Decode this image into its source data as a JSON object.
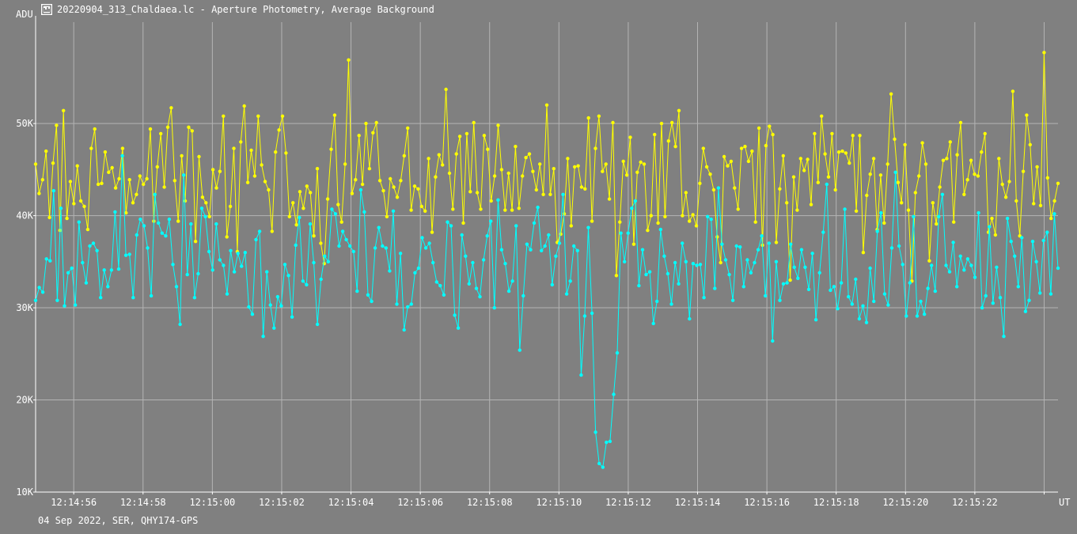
{
  "window": {
    "title": "20220904_313_Chaldaea.lc - Aperture Photometry, Average Background",
    "footer": "04 Sep 2022, SER, QHY174-GPS"
  },
  "colors": {
    "background": "#808080",
    "grid": "#b4b4b4",
    "axis": "#ffffff",
    "yellow_series": "#ffff00",
    "cyan_series": "#00ffff"
  },
  "chart_data": {
    "type": "line",
    "title": "",
    "xlabel": "UT",
    "ylabel": "ADU",
    "xlim": [
      0,
      29.5
    ],
    "ylim": [
      10000,
      61000
    ],
    "grid": true,
    "x_ticks": [
      {
        "value": 1.1,
        "label": "12:14:56"
      },
      {
        "value": 3.1,
        "label": "12:14:58"
      },
      {
        "value": 5.1,
        "label": "12:15:00"
      },
      {
        "value": 7.1,
        "label": "12:15:02"
      },
      {
        "value": 9.1,
        "label": "12:15:04"
      },
      {
        "value": 11.1,
        "label": "12:15:06"
      },
      {
        "value": 13.1,
        "label": "12:15:08"
      },
      {
        "value": 15.1,
        "label": "12:15:10"
      },
      {
        "value": 17.1,
        "label": "12:15:12"
      },
      {
        "value": 19.1,
        "label": "12:15:14"
      },
      {
        "value": 21.1,
        "label": "12:15:16"
      },
      {
        "value": 23.1,
        "label": "12:15:18"
      },
      {
        "value": 25.1,
        "label": "12:15:20"
      },
      {
        "value": 27.1,
        "label": "12:15:22"
      },
      {
        "value": 29.1,
        "label": ""
      }
    ],
    "y_ticks": [
      {
        "value": 10000,
        "label": "10K"
      },
      {
        "value": 20000,
        "label": "20K"
      },
      {
        "value": 30000,
        "label": "30K"
      },
      {
        "value": 40000,
        "label": "40K"
      },
      {
        "value": 50000,
        "label": "50K"
      }
    ],
    "series": [
      {
        "color": "#ffff00",
        "values": [
          45600,
          42400,
          43900,
          47000,
          39800,
          45700,
          49800,
          38400,
          51400,
          39700,
          43700,
          41300,
          45400,
          41600,
          41000,
          38500,
          47300,
          49400,
          43400,
          43500,
          46900,
          44700,
          45200,
          43000,
          44000,
          47300,
          40300,
          43900,
          41400,
          42300,
          44300,
          43400,
          44000,
          49400,
          39400,
          45300,
          48900,
          43100,
          49600,
          51700,
          43800,
          39400,
          46500,
          41600,
          49600,
          49200,
          37200,
          46400,
          42000,
          41400,
          39900,
          45000,
          43000,
          44800,
          50800,
          37700,
          41000,
          47300,
          36100,
          48000,
          51900,
          43600,
          47100,
          44300,
          50800,
          45500,
          43700,
          42800,
          38300,
          46900,
          49300,
          50800,
          46800,
          39900,
          41400,
          39000,
          42600,
          40800,
          43200,
          42500,
          37800,
          45100,
          37000,
          34800,
          41800,
          47200,
          50900,
          41200,
          39300,
          45600,
          56900,
          42400,
          43900,
          48700,
          43400,
          50000,
          45100,
          49000,
          50100,
          43800,
          42700,
          39900,
          44000,
          43100,
          42000,
          43800,
          46500,
          49500,
          40600,
          43200,
          42900,
          41000,
          40500,
          46200,
          38200,
          44200,
          46600,
          45500,
          53700,
          44600,
          40700,
          46700,
          48600,
          39200,
          48900,
          42600,
          50100,
          42500,
          40700,
          48700,
          47200,
          41600,
          44300,
          49800,
          45000,
          40600,
          44600,
          40600,
          47500,
          40800,
          44300,
          46300,
          46700,
          44800,
          42800,
          45600,
          42300,
          52000,
          42300,
          45100,
          37100,
          38000,
          40200,
          46200,
          38900,
          45300,
          45400,
          43100,
          42900,
          50600,
          39400,
          47300,
          50800,
          44800,
          45600,
          41800,
          50100,
          33500,
          39300,
          45900,
          44400,
          48500,
          36900,
          44700,
          45800,
          45600,
          38400,
          40000,
          48800,
          39200,
          50000,
          39900,
          48100,
          50100,
          47500,
          51400,
          40000,
          42500,
          39400,
          40100,
          38900,
          43500,
          47300,
          45300,
          44500,
          42800,
          37700,
          34900,
          46400,
          45400,
          45900,
          43000,
          40700,
          47300,
          47500,
          45900,
          47000,
          39300,
          49500,
          36800,
          47600,
          49700,
          48800,
          37100,
          42900,
          46500,
          41400,
          33000,
          44200,
          40600,
          46200,
          44900,
          46100,
          41200,
          48900,
          43600,
          50800,
          46700,
          44200,
          48900,
          42800,
          46900,
          47000,
          46800,
          45700,
          48700,
          40500,
          48700,
          36000,
          42200,
          44500,
          46200,
          38500,
          44400,
          39200,
          45600,
          53200,
          48300,
          43600,
          41400,
          47700,
          40600,
          32900,
          42500,
          44300,
          47900,
          45600,
          35100,
          41400,
          39100,
          43100,
          46000,
          46200,
          48000,
          39300,
          46600,
          50100,
          42300,
          43900,
          46000,
          44500,
          44300,
          46900,
          48900,
          38200,
          39700,
          37900,
          46200,
          43400,
          42000,
          43700,
          53500,
          41600,
          37800,
          44800,
          50900,
          47700,
          41300,
          45300,
          41100,
          57700,
          44100,
          39700,
          41600,
          43500
        ]
      },
      {
        "color": "#00ffff",
        "values": [
          30800,
          32200,
          31700,
          35300,
          35100,
          42700,
          30800,
          40800,
          30200,
          33800,
          34300,
          30300,
          39300,
          34900,
          32700,
          36700,
          37000,
          36200,
          31100,
          34100,
          32300,
          34100,
          40400,
          34200,
          46500,
          35700,
          35800,
          31100,
          37900,
          39600,
          38900,
          36500,
          31300,
          42300,
          39200,
          38100,
          37800,
          39600,
          34700,
          32300,
          28200,
          44400,
          33600,
          39100,
          31100,
          33700,
          40800,
          39900,
          36100,
          34100,
          39100,
          35200,
          34600,
          31500,
          36200,
          33900,
          35900,
          34500,
          36000,
          30100,
          29300,
          37400,
          38300,
          26900,
          33900,
          30300,
          27800,
          31200,
          30200,
          34700,
          33500,
          29000,
          36800,
          39800,
          32900,
          32500,
          39100,
          34900,
          28200,
          33100,
          35600,
          35000,
          40700,
          40200,
          36700,
          38300,
          37400,
          36700,
          36100,
          31800,
          42800,
          40400,
          31400,
          30700,
          36500,
          38700,
          36700,
          36500,
          34000,
          40500,
          30400,
          35900,
          27600,
          30100,
          30400,
          33800,
          34300,
          37600,
          36500,
          37000,
          34900,
          32800,
          32400,
          31400,
          39300,
          38900,
          29200,
          27800,
          37900,
          35600,
          32600,
          34900,
          32100,
          31200,
          35200,
          37800,
          39400,
          30000,
          41700,
          36300,
          34800,
          31800,
          32900,
          38900,
          25400,
          31300,
          36900,
          36300,
          39200,
          40900,
          36200,
          36700,
          37900,
          32500,
          35600,
          37000,
          42300,
          31500,
          32900,
          36700,
          36200,
          22700,
          29100,
          38700,
          29400,
          16500,
          13100,
          12700,
          15400,
          15500,
          20600,
          25100,
          38100,
          35000,
          38100,
          40800,
          41600,
          32400,
          36300,
          33600,
          33900,
          28300,
          30700,
          38500,
          35600,
          33700,
          30400,
          34900,
          32600,
          37000,
          35000,
          28800,
          34800,
          34600,
          34700,
          31100,
          39900,
          39600,
          32100,
          43000,
          36900,
          35200,
          33600,
          30800,
          36700,
          36600,
          32300,
          35200,
          33800,
          34900,
          36300,
          37800,
          31300,
          37000,
          26400,
          35000,
          30800,
          32600,
          32700,
          36900,
          34400,
          33200,
          36300,
          34400,
          32000,
          35900,
          28700,
          33800,
          38200,
          43400,
          31900,
          32300,
          29900,
          32700,
          40700,
          31200,
          30400,
          33100,
          28800,
          30200,
          28400,
          34300,
          30700,
          38300,
          40300,
          31500,
          30300,
          36500,
          44700,
          36700,
          34700,
          29100,
          32700,
          39900,
          29100,
          30700,
          29300,
          32100,
          34600,
          31800,
          39900,
          42300,
          34600,
          33900,
          37100,
          32300,
          35600,
          34100,
          35300,
          34600,
          33300,
          40300,
          30000,
          31300,
          38800,
          30500,
          34400,
          31100,
          26900,
          39700,
          37200,
          35600,
          32300,
          37600,
          29600,
          30800,
          37200,
          35000,
          31600,
          37300,
          38200,
          31500,
          40200,
          34300
        ]
      }
    ]
  }
}
